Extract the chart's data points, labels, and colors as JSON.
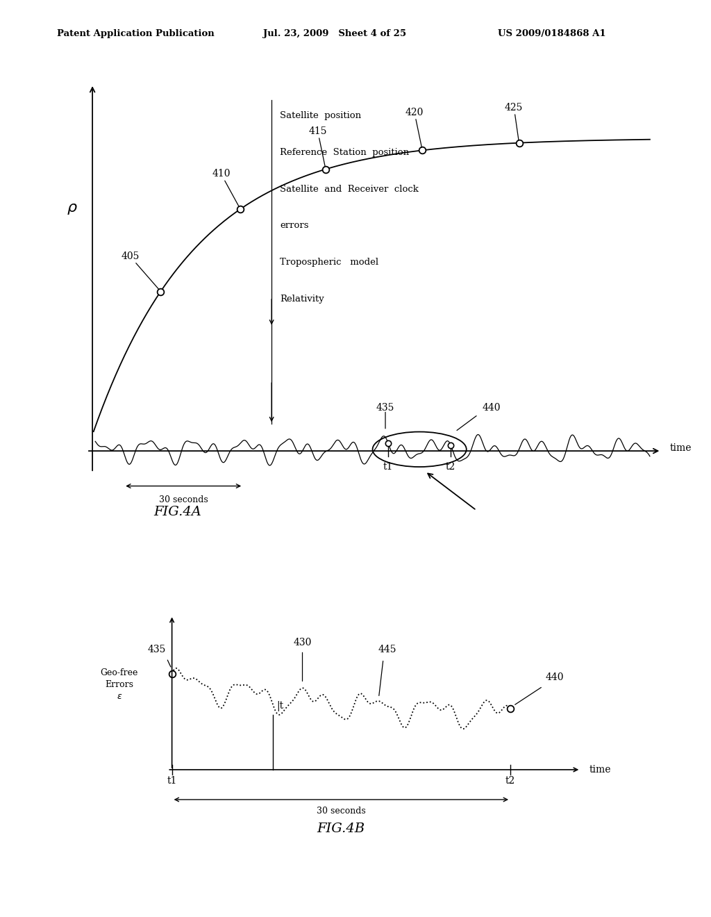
{
  "bg_color": "#ffffff",
  "header_left": "Patent Application Publication",
  "header_mid": "Jul. 23, 2009   Sheet 4 of 25",
  "header_right": "US 2009/0184868 A1",
  "fig4a_label": "FIG.4A",
  "fig4b_label": "FIG.4B",
  "legend_items": [
    "Satellite  position",
    "Reference  Station  position",
    "Satellite  and  Receiver  clock",
    "errors",
    "Tropospheric   model",
    "Relativity"
  ]
}
